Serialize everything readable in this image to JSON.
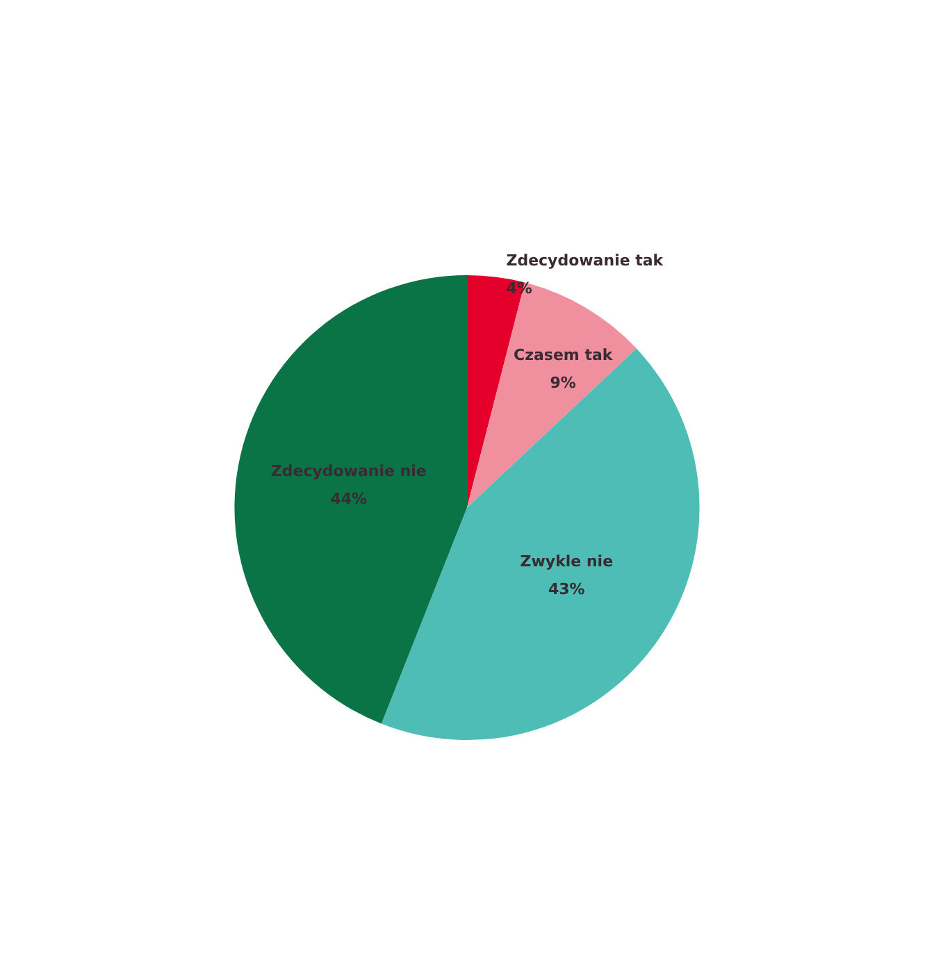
{
  "chart_data": {
    "type": "pie",
    "categories": [
      "Zdecydowanie tak",
      "Czasem tak",
      "Zwykle nie",
      "Zdecydowanie nie"
    ],
    "values": [
      4,
      9,
      43,
      44
    ],
    "colors": [
      "#e4002b",
      "#f0909e",
      "#4dbdb5",
      "#0a7446"
    ],
    "value_labels": [
      "4%",
      "9%",
      "43%",
      "44%"
    ],
    "legend": false
  }
}
